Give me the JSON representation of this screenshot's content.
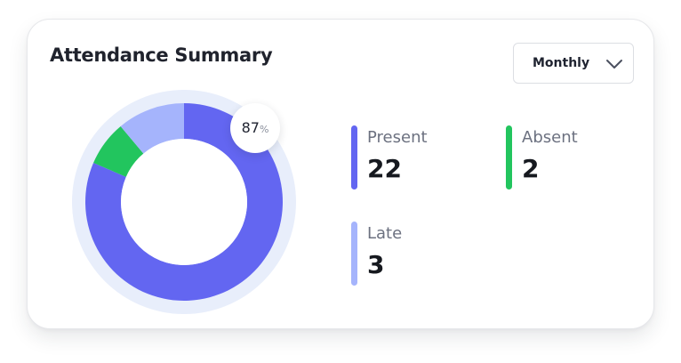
{
  "card": {
    "title": "Attendance Summary",
    "period": {
      "selected": "Monthly"
    },
    "attendance_percent": {
      "value": "87",
      "unit": "%"
    }
  },
  "stats": {
    "present": {
      "label": "Present",
      "value": "22",
      "color": "#6366f1"
    },
    "absent": {
      "label": "Absent",
      "value": "2",
      "color": "#22c55e"
    },
    "late": {
      "label": "Late",
      "value": "3",
      "color": "#a5b4fc"
    }
  },
  "chart_data": {
    "type": "pie",
    "variant": "donut",
    "categories": [
      "Present",
      "Absent",
      "Late"
    ],
    "values": [
      22,
      2,
      3
    ],
    "colors": [
      "#6366f1",
      "#22c55e",
      "#a5b4fc"
    ],
    "track_color": "#e8eefb"
  },
  "icons": {
    "dropdown": "chevron-down-icon"
  }
}
